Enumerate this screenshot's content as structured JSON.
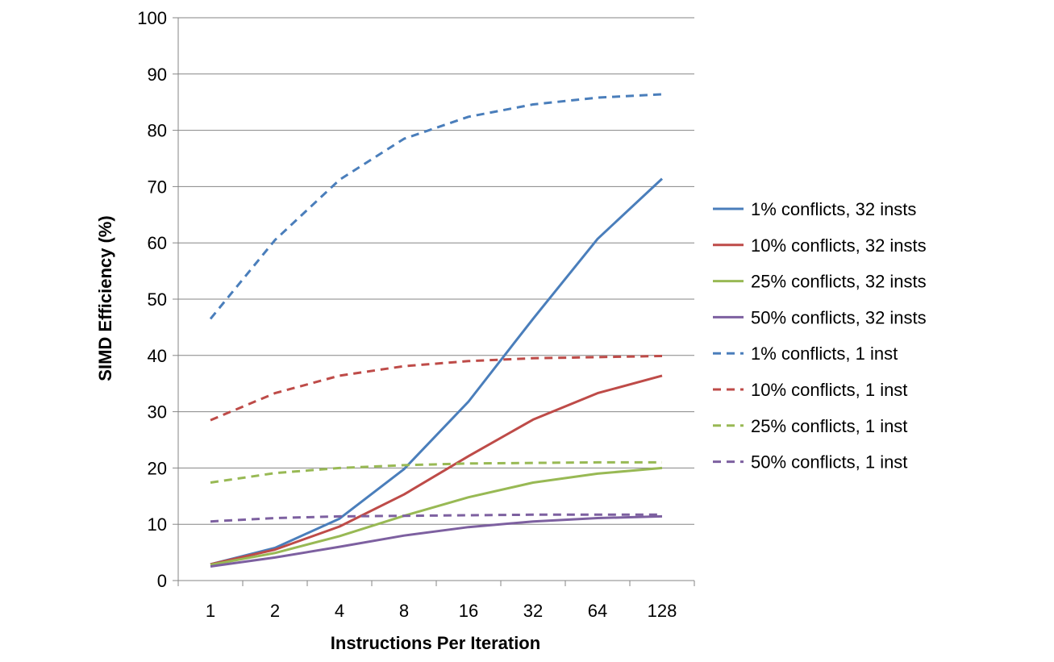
{
  "chart_data": {
    "type": "line",
    "xlabel": "Instructions Per Iteration",
    "ylabel": "SIMD Efficiency (%)",
    "categories": [
      "1",
      "2",
      "4",
      "8",
      "16",
      "32",
      "64",
      "128"
    ],
    "ylim": [
      0,
      100
    ],
    "yticks": [
      0,
      10,
      20,
      30,
      40,
      50,
      60,
      70,
      80,
      90,
      100
    ],
    "grid": "horizontal",
    "legend_position": "right",
    "series": [
      {
        "name": "1% conflicts, 32 insts",
        "color": "#4A7EBB",
        "dash": "solid",
        "values": [
          2.9,
          5.8,
          11.0,
          19.8,
          31.8,
          46.5,
          60.7,
          71.4
        ]
      },
      {
        "name": "10% conflicts, 32 insts",
        "color": "#BE4B48",
        "dash": "solid",
        "values": [
          2.9,
          5.5,
          9.6,
          15.3,
          22.1,
          28.6,
          33.3,
          36.4
        ]
      },
      {
        "name": "25% conflicts, 32 insts",
        "color": "#98B954",
        "dash": "solid",
        "values": [
          2.8,
          4.9,
          7.9,
          11.5,
          14.8,
          17.4,
          19.0,
          20.0
        ]
      },
      {
        "name": "50% conflicts, 32 insts",
        "color": "#7D60A0",
        "dash": "solid",
        "values": [
          2.5,
          4.1,
          6.0,
          8.0,
          9.5,
          10.5,
          11.1,
          11.4
        ]
      },
      {
        "name": "1% conflicts, 1 inst",
        "color": "#4A7EBB",
        "dash": "dashed",
        "values": [
          46.5,
          60.5,
          71.2,
          78.5,
          82.4,
          84.6,
          85.8,
          86.4
        ]
      },
      {
        "name": "10% conflicts, 1 inst",
        "color": "#BE4B48",
        "dash": "dashed",
        "values": [
          28.5,
          33.3,
          36.4,
          38.1,
          39.0,
          39.5,
          39.7,
          39.9
        ]
      },
      {
        "name": "25% conflicts, 1 inst",
        "color": "#98B954",
        "dash": "dashed",
        "values": [
          17.4,
          19.1,
          20.0,
          20.5,
          20.8,
          20.9,
          21.0,
          21.0
        ]
      },
      {
        "name": "50% conflicts, 1 inst",
        "color": "#7D60A0",
        "dash": "dashed",
        "values": [
          10.5,
          11.1,
          11.4,
          11.5,
          11.6,
          11.7,
          11.7,
          11.7
        ]
      }
    ]
  }
}
